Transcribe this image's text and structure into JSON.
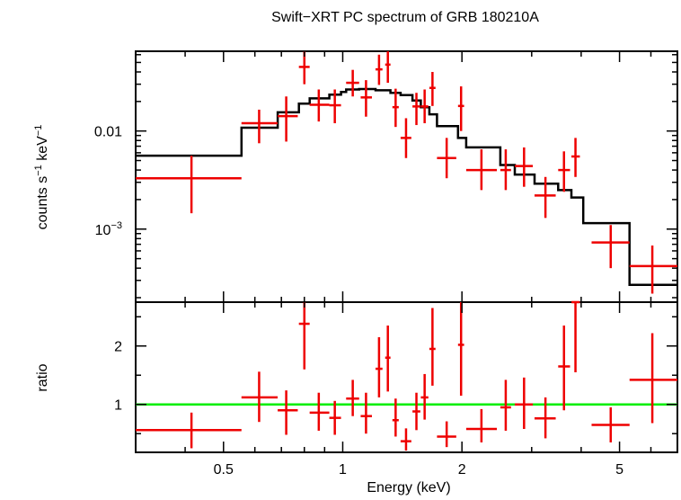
{
  "colors": {
    "data": "#ee0000",
    "model": "#000000",
    "unity": "#00ee00",
    "axes": "#000000"
  },
  "chart_data": [
    {
      "type": "scatter",
      "panel": "spectrum",
      "title": "Swift−XRT PC spectrum of GRB 180210A",
      "ylabel_main": "counts s",
      "ylabel_sup1": "−1",
      "ylabel_mid": " keV",
      "ylabel_sup2": "−1",
      "x_scale": "log",
      "y_scale": "log",
      "xlim": [
        0.3,
        7.0
      ],
      "ylim": [
        0.00018,
        0.065
      ],
      "y_ticks": [
        {
          "value": 0.01,
          "label": "0.01",
          "sup": ""
        },
        {
          "value": 0.001,
          "label": "10",
          "sup": "−3"
        }
      ],
      "data_points": [
        {
          "x": 0.415,
          "xlo": 0.3,
          "xhi": 0.555,
          "y": 0.0033,
          "ylo": 0.00145,
          "yhi": 0.0056
        },
        {
          "x": 0.615,
          "xlo": 0.555,
          "xhi": 0.685,
          "y": 0.012,
          "ylo": 0.0075,
          "yhi": 0.0165
        },
        {
          "x": 0.72,
          "xlo": 0.685,
          "xhi": 0.77,
          "y": 0.0142,
          "ylo": 0.0078,
          "yhi": 0.0225
        },
        {
          "x": 0.8,
          "xlo": 0.775,
          "xhi": 0.825,
          "y": 0.045,
          "ylo": 0.03,
          "yhi": 0.07
        },
        {
          "x": 0.87,
          "xlo": 0.825,
          "xhi": 0.925,
          "y": 0.0185,
          "ylo": 0.0125,
          "yhi": 0.0265
        },
        {
          "x": 0.955,
          "xlo": 0.925,
          "xhi": 0.99,
          "y": 0.0183,
          "ylo": 0.012,
          "yhi": 0.0265
        },
        {
          "x": 1.06,
          "xlo": 1.02,
          "xhi": 1.1,
          "y": 0.031,
          "ylo": 0.0225,
          "yhi": 0.042
        },
        {
          "x": 1.145,
          "xlo": 1.11,
          "xhi": 1.185,
          "y": 0.022,
          "ylo": 0.014,
          "yhi": 0.033
        },
        {
          "x": 1.235,
          "xlo": 1.21,
          "xhi": 1.26,
          "y": 0.0425,
          "ylo": 0.0295,
          "yhi": 0.06
        },
        {
          "x": 1.3,
          "xlo": 1.28,
          "xhi": 1.32,
          "y": 0.0475,
          "ylo": 0.031,
          "yhi": 0.068
        },
        {
          "x": 1.36,
          "xlo": 1.335,
          "xhi": 1.385,
          "y": 0.0175,
          "ylo": 0.011,
          "yhi": 0.027
        },
        {
          "x": 1.445,
          "xlo": 1.4,
          "xhi": 1.49,
          "y": 0.0085,
          "ylo": 0.0053,
          "yhi": 0.0135
        },
        {
          "x": 1.535,
          "xlo": 1.5,
          "xhi": 1.57,
          "y": 0.0178,
          "ylo": 0.0115,
          "yhi": 0.0245
        },
        {
          "x": 1.61,
          "xlo": 1.575,
          "xhi": 1.645,
          "y": 0.0178,
          "ylo": 0.012,
          "yhi": 0.0265
        },
        {
          "x": 1.685,
          "xlo": 1.655,
          "xhi": 1.715,
          "y": 0.0275,
          "ylo": 0.018,
          "yhi": 0.04
        },
        {
          "x": 1.83,
          "xlo": 1.73,
          "xhi": 1.935,
          "y": 0.0053,
          "ylo": 0.0033,
          "yhi": 0.0085
        },
        {
          "x": 1.99,
          "xlo": 1.955,
          "xhi": 2.025,
          "y": 0.018,
          "ylo": 0.01,
          "yhi": 0.0285
        },
        {
          "x": 2.24,
          "xlo": 2.05,
          "xhi": 2.45,
          "y": 0.004,
          "ylo": 0.0025,
          "yhi": 0.0065
        },
        {
          "x": 2.58,
          "xlo": 2.5,
          "xhi": 2.66,
          "y": 0.004,
          "ylo": 0.0025,
          "yhi": 0.0065
        },
        {
          "x": 2.87,
          "xlo": 2.72,
          "xhi": 3.02,
          "y": 0.0044,
          "ylo": 0.0027,
          "yhi": 0.0068
        },
        {
          "x": 3.25,
          "xlo": 3.05,
          "xhi": 3.45,
          "y": 0.0022,
          "ylo": 0.0013,
          "yhi": 0.0034
        },
        {
          "x": 3.62,
          "xlo": 3.5,
          "xhi": 3.75,
          "y": 0.004,
          "ylo": 0.0024,
          "yhi": 0.0062
        },
        {
          "x": 3.87,
          "xlo": 3.78,
          "xhi": 3.97,
          "y": 0.0055,
          "ylo": 0.0034,
          "yhi": 0.0085
        },
        {
          "x": 4.75,
          "xlo": 4.25,
          "xhi": 5.3,
          "y": 0.00073,
          "ylo": 0.0004,
          "yhi": 0.0011
        },
        {
          "x": 6.05,
          "xlo": 5.3,
          "xhi": 7.0,
          "y": 0.00042,
          "ylo": 0.00022,
          "yhi": 0.00068
        }
      ],
      "model_steps": [
        {
          "x0": 0.3,
          "x1": 0.555,
          "y": 0.0056
        },
        {
          "x0": 0.555,
          "x1": 0.685,
          "y": 0.0108
        },
        {
          "x0": 0.685,
          "x1": 0.775,
          "y": 0.0155
        },
        {
          "x0": 0.775,
          "x1": 0.825,
          "y": 0.019
        },
        {
          "x0": 0.825,
          "x1": 0.925,
          "y": 0.0215
        },
        {
          "x0": 0.925,
          "x1": 0.99,
          "y": 0.0235
        },
        {
          "x0": 0.99,
          "x1": 1.02,
          "y": 0.025
        },
        {
          "x0": 1.02,
          "x1": 1.1,
          "y": 0.0265
        },
        {
          "x0": 1.1,
          "x1": 1.21,
          "y": 0.0268
        },
        {
          "x0": 1.21,
          "x1": 1.32,
          "y": 0.026
        },
        {
          "x0": 1.32,
          "x1": 1.4,
          "y": 0.0245
        },
        {
          "x0": 1.4,
          "x1": 1.5,
          "y": 0.0232
        },
        {
          "x0": 1.5,
          "x1": 1.575,
          "y": 0.0205
        },
        {
          "x0": 1.575,
          "x1": 1.655,
          "y": 0.0175
        },
        {
          "x0": 1.655,
          "x1": 1.73,
          "y": 0.0148
        },
        {
          "x0": 1.73,
          "x1": 1.955,
          "y": 0.0112
        },
        {
          "x0": 1.955,
          "x1": 2.05,
          "y": 0.0085
        },
        {
          "x0": 2.05,
          "x1": 2.5,
          "y": 0.0068
        },
        {
          "x0": 2.5,
          "x1": 2.72,
          "y": 0.0045
        },
        {
          "x0": 2.72,
          "x1": 3.05,
          "y": 0.0036
        },
        {
          "x0": 3.05,
          "x1": 3.5,
          "y": 0.0029
        },
        {
          "x0": 3.5,
          "x1": 3.78,
          "y": 0.0025
        },
        {
          "x0": 3.78,
          "x1": 4.05,
          "y": 0.0021
        },
        {
          "x0": 4.05,
          "x1": 5.3,
          "y": 0.00115
        },
        {
          "x0": 5.3,
          "x1": 7.0,
          "y": 0.00027
        }
      ]
    },
    {
      "type": "scatter",
      "panel": "ratio",
      "xlabel": "Energy (keV)",
      "ylabel": "ratio",
      "x_scale": "log",
      "y_scale": "linear",
      "xlim": [
        0.3,
        7.0
      ],
      "ylim": [
        0.18,
        2.75
      ],
      "unity_line": 1,
      "x_ticks": [
        {
          "value": 0.5,
          "label": "0.5"
        },
        {
          "value": 1,
          "label": "1"
        },
        {
          "value": 2,
          "label": "2"
        },
        {
          "value": 5,
          "label": "5"
        }
      ],
      "y_ticks": [
        {
          "value": 1,
          "label": "1"
        },
        {
          "value": 2,
          "label": "2"
        }
      ],
      "data_points": [
        {
          "x": 0.415,
          "xlo": 0.3,
          "xhi": 0.555,
          "y": 0.56,
          "ylo": 0.25,
          "yhi": 0.86
        },
        {
          "x": 0.615,
          "xlo": 0.555,
          "xhi": 0.685,
          "y": 1.12,
          "ylo": 0.7,
          "yhi": 1.56
        },
        {
          "x": 0.72,
          "xlo": 0.685,
          "xhi": 0.77,
          "y": 0.9,
          "ylo": 0.48,
          "yhi": 1.24
        },
        {
          "x": 0.8,
          "xlo": 0.775,
          "xhi": 0.825,
          "y": 2.38,
          "ylo": 1.6,
          "yhi": 2.75
        },
        {
          "x": 0.87,
          "xlo": 0.825,
          "xhi": 0.925,
          "y": 0.86,
          "ylo": 0.55,
          "yhi": 1.2
        },
        {
          "x": 0.955,
          "xlo": 0.925,
          "xhi": 0.99,
          "y": 0.77,
          "ylo": 0.48,
          "yhi": 1.06
        },
        {
          "x": 1.06,
          "xlo": 1.02,
          "xhi": 1.1,
          "y": 1.1,
          "ylo": 0.8,
          "yhi": 1.42
        },
        {
          "x": 1.145,
          "xlo": 1.11,
          "xhi": 1.185,
          "y": 0.8,
          "ylo": 0.5,
          "yhi": 1.2
        },
        {
          "x": 1.235,
          "xlo": 1.21,
          "xhi": 1.26,
          "y": 1.61,
          "ylo": 1.12,
          "yhi": 2.15
        },
        {
          "x": 1.3,
          "xlo": 1.28,
          "xhi": 1.32,
          "y": 1.8,
          "ylo": 1.22,
          "yhi": 2.35
        },
        {
          "x": 1.36,
          "xlo": 1.335,
          "xhi": 1.385,
          "y": 0.73,
          "ylo": 0.45,
          "yhi": 1.1
        },
        {
          "x": 1.445,
          "xlo": 1.4,
          "xhi": 1.49,
          "y": 0.37,
          "ylo": 0.21,
          "yhi": 0.59
        },
        {
          "x": 1.535,
          "xlo": 1.5,
          "xhi": 1.57,
          "y": 0.88,
          "ylo": 0.56,
          "yhi": 1.2
        },
        {
          "x": 1.61,
          "xlo": 1.575,
          "xhi": 1.645,
          "y": 1.12,
          "ylo": 0.74,
          "yhi": 1.52
        },
        {
          "x": 1.685,
          "xlo": 1.655,
          "xhi": 1.715,
          "y": 1.95,
          "ylo": 1.32,
          "yhi": 2.65
        },
        {
          "x": 1.83,
          "xlo": 1.73,
          "xhi": 1.935,
          "y": 0.45,
          "ylo": 0.27,
          "yhi": 0.71
        },
        {
          "x": 1.99,
          "xlo": 1.955,
          "xhi": 2.025,
          "y": 2.02,
          "ylo": 1.15,
          "yhi": 2.75
        },
        {
          "x": 2.24,
          "xlo": 2.05,
          "xhi": 2.45,
          "y": 0.58,
          "ylo": 0.35,
          "yhi": 0.92
        },
        {
          "x": 2.58,
          "xlo": 2.5,
          "xhi": 2.66,
          "y": 0.95,
          "ylo": 0.55,
          "yhi": 1.42
        },
        {
          "x": 2.87,
          "xlo": 2.72,
          "xhi": 3.02,
          "y": 1.0,
          "ylo": 0.58,
          "yhi": 1.46
        },
        {
          "x": 3.25,
          "xlo": 3.05,
          "xhi": 3.45,
          "y": 0.76,
          "ylo": 0.42,
          "yhi": 1.12
        },
        {
          "x": 3.62,
          "xlo": 3.5,
          "xhi": 3.75,
          "y": 1.65,
          "ylo": 0.9,
          "yhi": 2.35
        },
        {
          "x": 3.87,
          "xlo": 3.78,
          "xhi": 3.97,
          "y": 2.75,
          "ylo": 1.55,
          "yhi": 2.75
        },
        {
          "x": 4.75,
          "xlo": 4.25,
          "xhi": 5.3,
          "y": 0.65,
          "ylo": 0.35,
          "yhi": 0.95
        },
        {
          "x": 6.05,
          "xlo": 5.3,
          "xhi": 7.0,
          "y": 1.42,
          "ylo": 0.68,
          "yhi": 2.22
        }
      ]
    }
  ]
}
